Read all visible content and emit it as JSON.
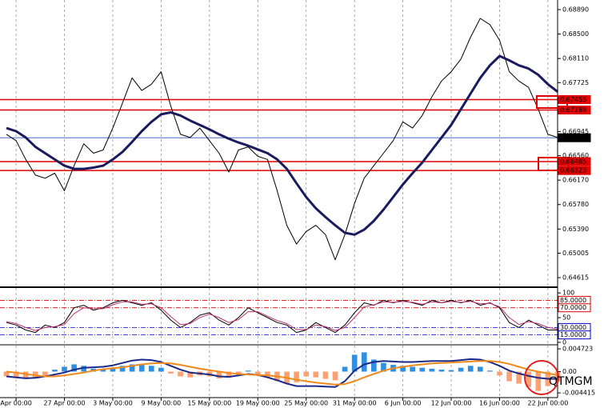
{
  "chart_data": [
    {
      "type": "line",
      "categories": [
        null,
        "Apr 00:00",
        null,
        null,
        null,
        null,
        "27 Apr 00:00",
        null,
        null,
        null,
        null,
        "3 May 00:00",
        null,
        null,
        null,
        null,
        "9 May 00:00",
        null,
        null,
        null,
        null,
        "15 May 00:00",
        null,
        null,
        null,
        null,
        "19 May 00:00",
        null,
        null,
        null,
        null,
        "25 May 00:00",
        null,
        null,
        null,
        null,
        "31 May 00:00",
        null,
        null,
        null,
        null,
        "6 Jun 00:00",
        null,
        null,
        null,
        null,
        "12 Jun 00:00",
        null,
        null,
        null,
        null,
        "16 Jun 00:00",
        null,
        null,
        null,
        null,
        "22 Jun 00:00",
        null
      ],
      "ylim": [
        0.64475,
        0.69043
      ],
      "yticks": [
        {
          "value": 0.6889,
          "label": "0.68890"
        },
        {
          "value": 0.685,
          "label": "0.68500"
        },
        {
          "value": 0.6811,
          "label": "0.68110"
        },
        {
          "value": 0.67725,
          "label": "0.67725"
        },
        {
          "value": 0.66945,
          "label": "0.66945"
        },
        {
          "value": 0.6656,
          "label": "0.66560"
        },
        {
          "value": 0.6617,
          "label": "0.66170"
        },
        {
          "value": 0.6578,
          "label": "0.65780"
        },
        {
          "value": 0.6539,
          "label": "0.65390"
        },
        {
          "value": 0.65005,
          "label": "0.65005"
        },
        {
          "value": 0.64615,
          "label": "0.64615"
        }
      ],
      "series": [
        {
          "color": "#000000",
          "line_width": 1,
          "values": [
            0.669,
            0.668,
            0.665,
            0.6625,
            0.662,
            0.6628,
            0.66,
            0.664,
            0.6675,
            0.666,
            0.6665,
            0.67,
            0.674,
            0.678,
            0.676,
            0.677,
            0.679,
            0.6735,
            0.669,
            0.6685,
            0.67,
            0.668,
            0.666,
            0.663,
            0.6665,
            0.667,
            0.6655,
            0.665,
            0.66,
            0.6545,
            0.6515,
            0.6535,
            0.6545,
            0.653,
            0.649,
            0.653,
            0.658,
            0.662,
            0.664,
            0.666,
            0.668,
            0.671,
            0.67,
            0.672,
            0.675,
            0.6775,
            0.679,
            0.681,
            0.6845,
            0.6875,
            0.6865,
            0.684,
            0.679,
            0.6775,
            0.6765,
            0.673,
            0.669,
            0.6685
          ]
        },
        {
          "color": "#1a1a5e",
          "line_width": 3,
          "values": [
            0.67,
            0.6695,
            0.6685,
            0.667,
            0.666,
            0.665,
            0.664,
            0.6635,
            0.6635,
            0.6637,
            0.664,
            0.665,
            0.6662,
            0.6678,
            0.6695,
            0.671,
            0.6722,
            0.6725,
            0.672,
            0.6712,
            0.6705,
            0.6698,
            0.669,
            0.6683,
            0.6677,
            0.6672,
            0.6666,
            0.666,
            0.665,
            0.6635,
            0.6612,
            0.659,
            0.6572,
            0.6558,
            0.6545,
            0.6533,
            0.653,
            0.6538,
            0.6552,
            0.657,
            0.659,
            0.661,
            0.6628,
            0.6645,
            0.6665,
            0.6685,
            0.6705,
            0.673,
            0.6755,
            0.678,
            0.68,
            0.6815,
            0.6808,
            0.68,
            0.6795,
            0.6785,
            0.677,
            0.6758
          ]
        }
      ],
      "levels": [
        {
          "value": 0.67455,
          "label": "0.67455",
          "color": "#e00000"
        },
        {
          "value": 0.67288,
          "label": "0.67288",
          "color": "#e00000"
        },
        {
          "value": 0.66846,
          "label": "0.66846",
          "color": "#000000"
        },
        {
          "value": 0.66465,
          "label": "0.66465",
          "color": "#e00000"
        },
        {
          "value": 0.66323,
          "label": "0.66323",
          "color": "#e00000"
        }
      ]
    },
    {
      "type": "line",
      "ylim": [
        -5,
        110
      ],
      "yticks": [
        100,
        50,
        0
      ],
      "series": [
        {
          "color": "#000000",
          "line_width": 1,
          "values": [
            40,
            35,
            25,
            20,
            35,
            30,
            40,
            70,
            75,
            65,
            70,
            80,
            85,
            80,
            75,
            80,
            65,
            45,
            30,
            40,
            55,
            60,
            45,
            35,
            50,
            70,
            60,
            50,
            40,
            35,
            20,
            25,
            40,
            30,
            20,
            35,
            60,
            80,
            75,
            85,
            80,
            85,
            80,
            75,
            85,
            80,
            85,
            80,
            85,
            75,
            80,
            70,
            40,
            30,
            45,
            35,
            25,
            25
          ]
        },
        {
          "color": "#c0306a",
          "line_width": 1,
          "values": [
            42,
            38,
            30,
            24,
            30,
            32,
            36,
            58,
            70,
            68,
            68,
            76,
            82,
            82,
            77,
            78,
            70,
            52,
            36,
            38,
            50,
            57,
            50,
            40,
            46,
            62,
            62,
            53,
            44,
            38,
            26,
            26,
            35,
            32,
            24,
            30,
            50,
            72,
            76,
            82,
            81,
            83,
            81,
            77,
            82,
            80,
            83,
            81,
            83,
            78,
            79,
            72,
            50,
            36,
            42,
            38,
            30,
            27
          ]
        }
      ],
      "levels": [
        {
          "value": 85,
          "label": "85.0000",
          "color": "#e00000"
        },
        {
          "value": 70,
          "label": "70.0000",
          "color": "#e00000"
        },
        {
          "value": 30,
          "label": "30.0000",
          "color": "#0000cc"
        },
        {
          "value": 15,
          "label": "15.0000",
          "color": "#0000cc"
        }
      ]
    },
    {
      "type": "macd",
      "ylim": [
        -0.0054,
        0.0054
      ],
      "yticks": [
        {
          "value": 0.004723,
          "label": "0.004723"
        },
        {
          "value": 0,
          "label": "0.00"
        },
        {
          "value": -0.004415,
          "label": "-0.004415"
        }
      ],
      "histogram": {
        "color_positive": "#2f8fe0",
        "color_negative": "#ffa070",
        "values": [
          -0.001,
          -0.0013,
          -0.0015,
          -0.0012,
          -0.0008,
          0.0004,
          0.001,
          0.0015,
          0.0012,
          0.0006,
          0.0005,
          0.0008,
          0.0012,
          0.0015,
          0.0014,
          0.0012,
          0.0008,
          -0.0004,
          -0.001,
          -0.0012,
          -0.0008,
          -0.001,
          -0.0014,
          -0.0012,
          -0.0004,
          0.0002,
          -0.0006,
          -0.0012,
          -0.002,
          -0.0025,
          -0.0022,
          -0.001,
          -0.0012,
          -0.0015,
          -0.0018,
          0.001,
          0.0035,
          0.004,
          0.0025,
          0.0018,
          0.0014,
          0.0012,
          0.001,
          0.0008,
          0.0006,
          0.0004,
          0.0003,
          0.0008,
          0.0012,
          0.001,
          0.0002,
          -0.0008,
          -0.002,
          -0.0025,
          -0.0032,
          -0.004,
          -0.003,
          -0.002
        ]
      },
      "series": [
        {
          "color": "#1a2a8a",
          "line_width": 2,
          "values": [
            -0.001,
            -0.0012,
            -0.0014,
            -0.0013,
            -0.001,
            -0.0006,
            -0.0002,
            0.0004,
            0.0008,
            0.0009,
            0.001,
            0.0013,
            0.0018,
            0.0023,
            0.0025,
            0.0024,
            0.002,
            0.0012,
            0.0004,
            -0.0002,
            -0.0004,
            -0.0006,
            -0.001,
            -0.0011,
            -0.0008,
            -0.0005,
            -0.0007,
            -0.0012,
            -0.0018,
            -0.0025,
            -0.003,
            -0.003,
            -0.003,
            -0.0031,
            -0.0032,
            -0.002,
            0.0002,
            0.0015,
            0.002,
            0.0022,
            0.0021,
            0.002,
            0.002,
            0.0021,
            0.0022,
            0.0022,
            0.0022,
            0.0024,
            0.0026,
            0.0025,
            0.002,
            0.0012,
            0.0002,
            -0.0004,
            -0.0009,
            -0.0013,
            -0.0015,
            -0.0015
          ]
        },
        {
          "color": "#f08a1c",
          "line_width": 2,
          "values": [
            0.0,
            -0.0002,
            -0.0005,
            -0.0008,
            -0.001,
            -0.001,
            -0.0008,
            -0.0005,
            -0.0002,
            0.0002,
            0.0005,
            0.0007,
            0.0009,
            0.0012,
            0.0015,
            0.0017,
            0.0018,
            0.0017,
            0.0014,
            0.001,
            0.0006,
            0.0003,
            0.0,
            -0.0003,
            -0.0005,
            -0.0006,
            -0.0007,
            -0.0008,
            -0.001,
            -0.0013,
            -0.0017,
            -0.002,
            -0.0023,
            -0.0025,
            -0.0027,
            -0.0026,
            -0.002,
            -0.0012,
            -0.0005,
            0.0002,
            0.0007,
            0.001,
            0.0013,
            0.0015,
            0.0017,
            0.0018,
            0.0019,
            0.002,
            0.0021,
            0.0022,
            0.0022,
            0.002,
            0.0016,
            0.001,
            0.0004,
            0.0,
            -0.0004,
            -0.0007
          ]
        }
      ]
    }
  ],
  "watermark": "QTMGM"
}
